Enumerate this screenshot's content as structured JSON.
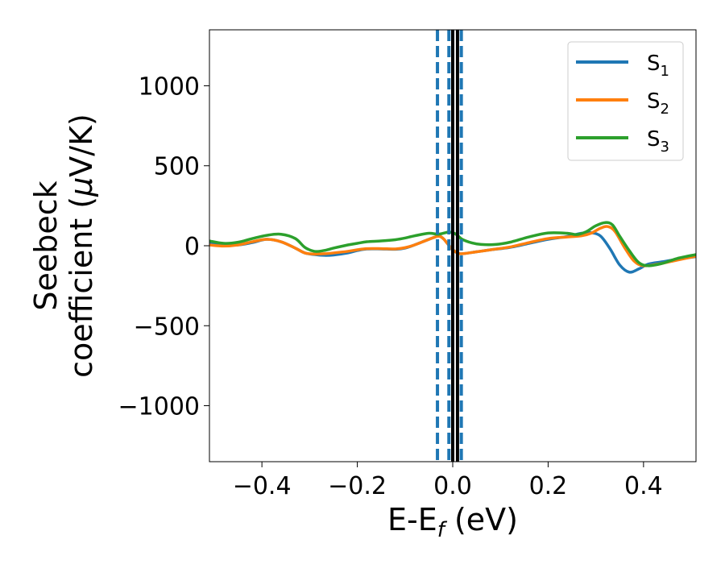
{
  "chart_data": {
    "type": "line",
    "xlabel": {
      "main": "E-E",
      "sub": "f",
      "tail": " (eV)"
    },
    "ylabel": {
      "line1": "Seebeck",
      "line2_prefix": "coefficient  (",
      "line2_mu": "μ",
      "line2_suffix": "V/K)"
    },
    "xlim": [
      -0.51,
      0.51
    ],
    "ylim": [
      -1350,
      1350
    ],
    "xticks": [
      -0.4,
      -0.2,
      0.0,
      0.2,
      0.4
    ],
    "xtick_labels": [
      "−0.4",
      "−0.2",
      "0.0",
      "0.2",
      "0.4"
    ],
    "yticks": [
      -1000,
      -500,
      0,
      500,
      1000
    ],
    "ytick_labels": [
      "−1000",
      "−500",
      "0",
      "500",
      "1000"
    ],
    "legend_position": "top-right",
    "series": [
      {
        "name": "S1",
        "label_main": "S",
        "label_sub": "1",
        "color": "#1f77b4",
        "points": [
          [
            -0.51,
            15
          ],
          [
            -0.48,
            8
          ],
          [
            -0.45,
            5
          ],
          [
            -0.42,
            20
          ],
          [
            -0.39,
            40
          ],
          [
            -0.36,
            25
          ],
          [
            -0.33,
            -15
          ],
          [
            -0.31,
            -45
          ],
          [
            -0.29,
            -55
          ],
          [
            -0.27,
            -60
          ],
          [
            -0.25,
            -58
          ],
          [
            -0.22,
            -45
          ],
          [
            -0.2,
            -30
          ],
          [
            -0.18,
            -20
          ],
          [
            -0.15,
            -20
          ],
          [
            -0.12,
            -22
          ],
          [
            -0.1,
            -15
          ],
          [
            -0.08,
            5
          ],
          [
            -0.05,
            40
          ],
          [
            -0.03,
            60
          ],
          [
            -0.02,
            45
          ],
          [
            -0.01,
            10
          ],
          [
            0.0,
            -25
          ],
          [
            0.01,
            -45
          ],
          [
            0.02,
            -50
          ],
          [
            0.05,
            -38
          ],
          [
            0.08,
            -25
          ],
          [
            0.12,
            -10
          ],
          [
            0.16,
            15
          ],
          [
            0.2,
            40
          ],
          [
            0.24,
            58
          ],
          [
            0.27,
            78
          ],
          [
            0.29,
            82
          ],
          [
            0.31,
            60
          ],
          [
            0.33,
            -20
          ],
          [
            0.35,
            -120
          ],
          [
            0.37,
            -165
          ],
          [
            0.39,
            -145
          ],
          [
            0.41,
            -115
          ],
          [
            0.44,
            -100
          ],
          [
            0.47,
            -85
          ],
          [
            0.51,
            -68
          ]
        ]
      },
      {
        "name": "S2",
        "label_main": "S",
        "label_sub": "2",
        "color": "#ff7f0e",
        "points": [
          [
            -0.51,
            5
          ],
          [
            -0.48,
            -2
          ],
          [
            -0.45,
            5
          ],
          [
            -0.42,
            25
          ],
          [
            -0.39,
            40
          ],
          [
            -0.36,
            25
          ],
          [
            -0.33,
            -15
          ],
          [
            -0.31,
            -45
          ],
          [
            -0.29,
            -52
          ],
          [
            -0.27,
            -50
          ],
          [
            -0.25,
            -45
          ],
          [
            -0.22,
            -35
          ],
          [
            -0.2,
            -25
          ],
          [
            -0.18,
            -18
          ],
          [
            -0.15,
            -18
          ],
          [
            -0.12,
            -20
          ],
          [
            -0.1,
            -12
          ],
          [
            -0.08,
            5
          ],
          [
            -0.05,
            40
          ],
          [
            -0.03,
            60
          ],
          [
            -0.02,
            45
          ],
          [
            -0.01,
            10
          ],
          [
            0.0,
            -25
          ],
          [
            0.01,
            -45
          ],
          [
            0.02,
            -50
          ],
          [
            0.05,
            -38
          ],
          [
            0.08,
            -25
          ],
          [
            0.12,
            -8
          ],
          [
            0.16,
            20
          ],
          [
            0.2,
            45
          ],
          [
            0.24,
            55
          ],
          [
            0.27,
            62
          ],
          [
            0.29,
            78
          ],
          [
            0.31,
            110
          ],
          [
            0.325,
            120
          ],
          [
            0.34,
            90
          ],
          [
            0.36,
            -10
          ],
          [
            0.38,
            -95
          ],
          [
            0.4,
            -125
          ],
          [
            0.43,
            -115
          ],
          [
            0.47,
            -90
          ],
          [
            0.51,
            -65
          ]
        ]
      },
      {
        "name": "S3",
        "label_main": "S",
        "label_sub": "3",
        "color": "#2ca02c",
        "points": [
          [
            -0.51,
            30
          ],
          [
            -0.48,
            15
          ],
          [
            -0.45,
            22
          ],
          [
            -0.42,
            45
          ],
          [
            -0.39,
            65
          ],
          [
            -0.36,
            72
          ],
          [
            -0.33,
            45
          ],
          [
            -0.31,
            -10
          ],
          [
            -0.29,
            -35
          ],
          [
            -0.27,
            -30
          ],
          [
            -0.25,
            -15
          ],
          [
            -0.22,
            5
          ],
          [
            -0.2,
            15
          ],
          [
            -0.18,
            25
          ],
          [
            -0.15,
            30
          ],
          [
            -0.12,
            38
          ],
          [
            -0.1,
            48
          ],
          [
            -0.08,
            62
          ],
          [
            -0.05,
            78
          ],
          [
            -0.03,
            72
          ],
          [
            -0.01,
            85
          ],
          [
            0.0,
            82
          ],
          [
            0.01,
            65
          ],
          [
            0.02,
            40
          ],
          [
            0.04,
            18
          ],
          [
            0.06,
            8
          ],
          [
            0.09,
            8
          ],
          [
            0.12,
            22
          ],
          [
            0.16,
            55
          ],
          [
            0.2,
            80
          ],
          [
            0.24,
            78
          ],
          [
            0.26,
            70
          ],
          [
            0.28,
            88
          ],
          [
            0.3,
            125
          ],
          [
            0.32,
            145
          ],
          [
            0.335,
            130
          ],
          [
            0.35,
            60
          ],
          [
            0.37,
            -30
          ],
          [
            0.39,
            -105
          ],
          [
            0.41,
            -125
          ],
          [
            0.44,
            -110
          ],
          [
            0.47,
            -80
          ],
          [
            0.51,
            -55
          ]
        ]
      }
    ],
    "vlines": [
      {
        "x": -0.032,
        "style": "dashed",
        "color": "#1f77b4"
      },
      {
        "x": -0.008,
        "style": "dashed",
        "color": "#1f77b4"
      },
      {
        "x": 0.018,
        "style": "dashed",
        "color": "#1f77b4"
      },
      {
        "x": 0.0,
        "style": "solid",
        "color": "#000000"
      },
      {
        "x": 0.01,
        "style": "solid",
        "color": "#000000"
      }
    ]
  }
}
